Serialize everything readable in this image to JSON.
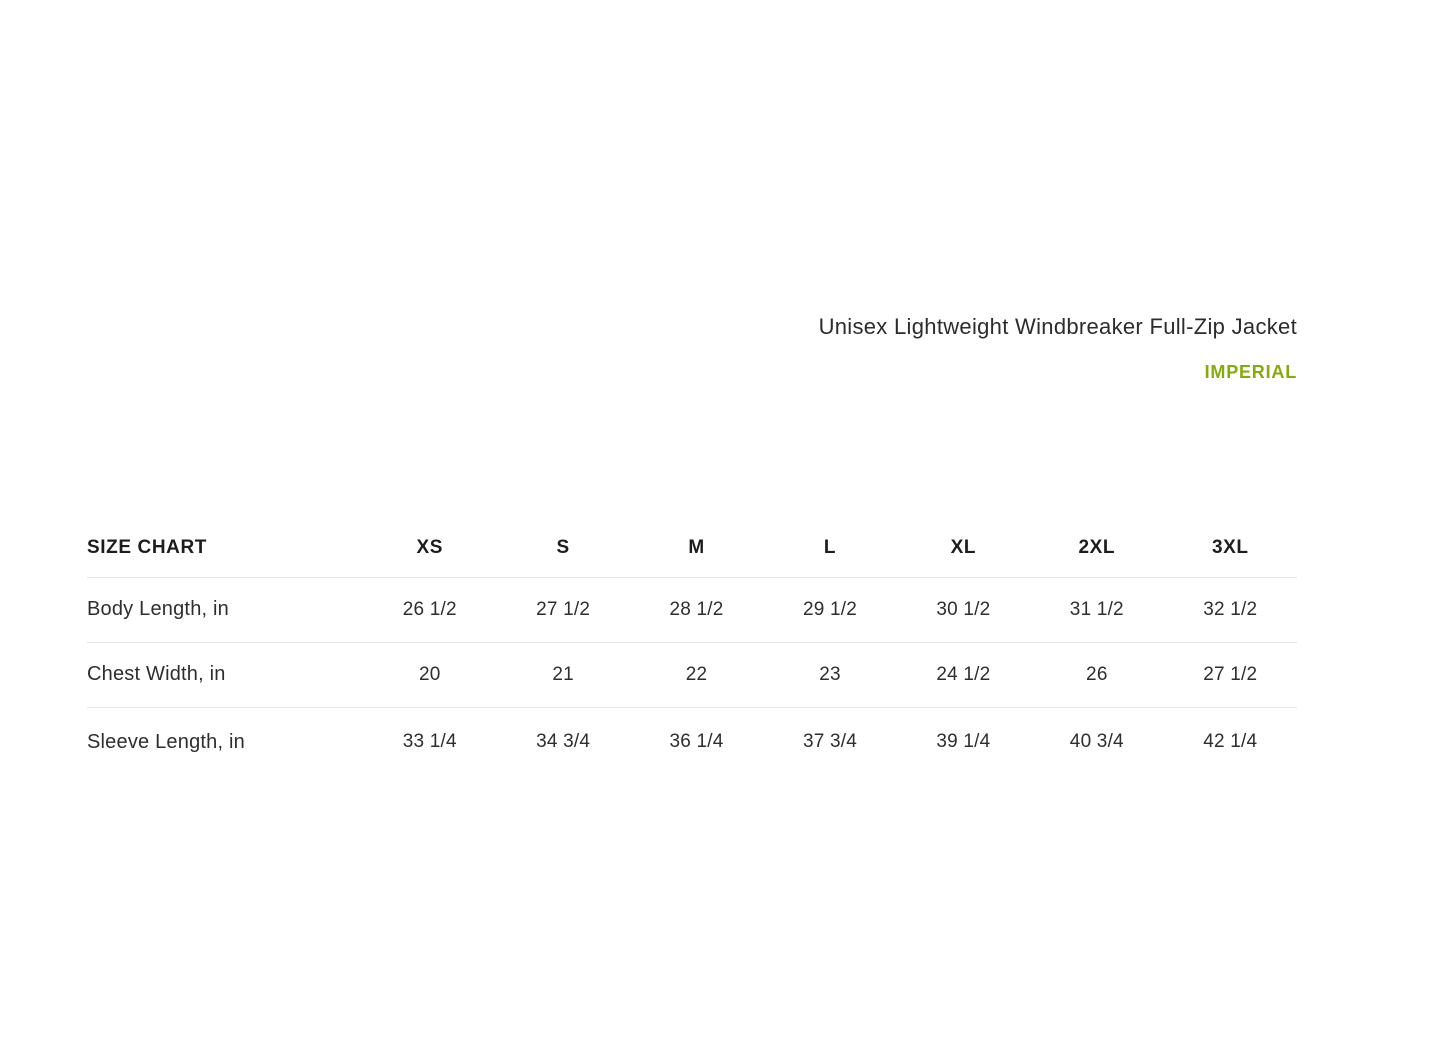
{
  "page": {
    "title": "Unisex Lightweight Windbreaker Full-Zip Jacket",
    "unit_label": "IMPERIAL",
    "accent_color": "#85ab0b",
    "divider_color": "#e4e4e4"
  },
  "size_chart": {
    "header_label": "SIZE CHART",
    "sizes": [
      "XS",
      "S",
      "M",
      "L",
      "XL",
      "2XL",
      "3XL"
    ],
    "rows": [
      {
        "label": "Body Length, in",
        "values": [
          "26 1/2",
          "27 1/2",
          "28 1/2",
          "29 1/2",
          "30 1/2",
          "31 1/2",
          "32 1/2"
        ]
      },
      {
        "label": "Chest Width, in",
        "values": [
          "20",
          "21",
          "22",
          "23",
          "24 1/2",
          "26",
          "27 1/2"
        ]
      },
      {
        "label": "Sleeve Length, in",
        "values": [
          "33 1/4",
          "34 3/4",
          "36 1/4",
          "37 3/4",
          "39 1/4",
          "40 3/4",
          "42 1/4"
        ]
      }
    ]
  },
  "chart_data": {
    "type": "table",
    "title": "SIZE CHART",
    "subtitle": "Unisex Lightweight Windbreaker Full-Zip Jacket",
    "units": "IMPERIAL (inches)",
    "columns": [
      "XS",
      "S",
      "M",
      "L",
      "XL",
      "2XL",
      "3XL"
    ],
    "series": [
      {
        "name": "Body Length, in",
        "values": [
          26.5,
          27.5,
          28.5,
          29.5,
          30.5,
          31.5,
          32.5
        ]
      },
      {
        "name": "Chest Width, in",
        "values": [
          20,
          21,
          22,
          23,
          24.5,
          26,
          27.5
        ]
      },
      {
        "name": "Sleeve Length, in",
        "values": [
          33.25,
          34.75,
          36.25,
          37.75,
          39.25,
          40.75,
          42.25
        ]
      }
    ]
  }
}
